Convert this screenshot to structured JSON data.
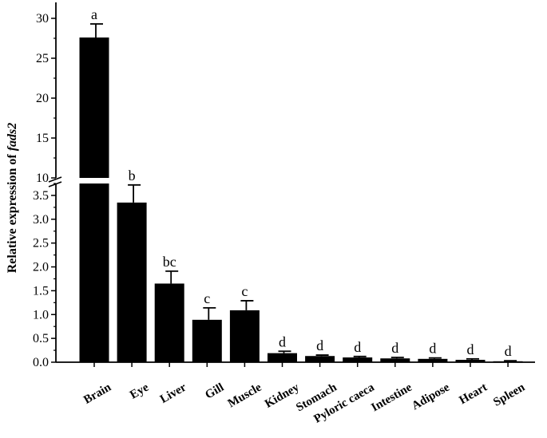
{
  "chart_data": {
    "type": "bar",
    "title": "",
    "xlabel": "",
    "ylabel": "Relative expression of",
    "ylabel_gene": "fads2",
    "categories": [
      "Brain",
      "Eye",
      "Liver",
      "Gill",
      "Muscle",
      "Kidney",
      "Stomach",
      "Pyloric caeca",
      "Intestine",
      "Adipose",
      "Heart",
      "Spleen"
    ],
    "values": [
      27.6,
      3.35,
      1.65,
      0.89,
      1.09,
      0.19,
      0.13,
      0.1,
      0.08,
      0.07,
      0.05,
      0.02
    ],
    "errors": [
      1.7,
      0.37,
      0.26,
      0.25,
      0.2,
      0.04,
      0.02,
      0.02,
      0.02,
      0.02,
      0.02,
      0.01
    ],
    "significance": [
      "a",
      "b",
      "bc",
      "c",
      "c",
      "d",
      "d",
      "d",
      "d",
      "d",
      "d",
      "d"
    ],
    "y_axis_break": true,
    "y_lower_range": [
      0,
      3.75
    ],
    "y_upper_range": [
      10,
      32
    ],
    "y_lower_ticks": [
      "0.0",
      "0.5",
      "1.0",
      "1.5",
      "2.0",
      "2.5",
      "3.0",
      "3.5"
    ],
    "y_upper_ticks": [
      "10",
      "15",
      "20",
      "25",
      "30"
    ],
    "bar_color": "#000000",
    "grid": false
  }
}
